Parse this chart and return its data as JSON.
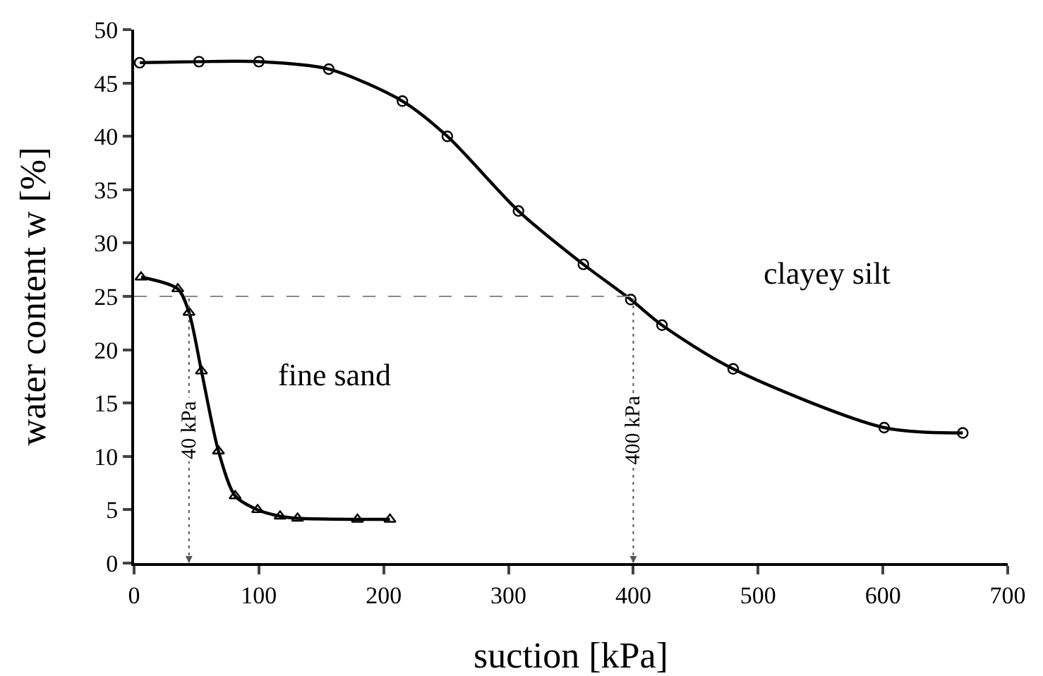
{
  "chart_data": {
    "type": "line",
    "xlabel": "suction [kPa]",
    "ylabel": "water content w [%]",
    "xlim": [
      0,
      700
    ],
    "xticks": [
      0,
      100,
      200,
      300,
      400,
      500,
      600,
      700
    ],
    "ylim": [
      0,
      50
    ],
    "yticks": [
      0,
      5,
      10,
      15,
      20,
      25,
      30,
      35,
      40,
      45,
      50
    ],
    "grid": false,
    "legend": false,
    "series": [
      {
        "name": "clayey silt",
        "color": "#000000",
        "marker": "circle",
        "x": [
          4.5,
          52,
          100,
          156,
          215,
          251,
          308,
          360,
          398,
          423,
          480,
          601,
          664
        ],
        "values": [
          46.9,
          47,
          47,
          46.3,
          43.3,
          40,
          33,
          28,
          24.7,
          22.3,
          18.2,
          12.7,
          12.2
        ]
      },
      {
        "name": "fine sand",
        "color": "#000000",
        "marker": "triangle",
        "x": [
          5.6,
          35,
          44,
          54,
          67.6,
          81,
          99,
          117,
          131,
          179,
          205
        ],
        "values": [
          26.8,
          25.7,
          23.5,
          18,
          10.5,
          6.3,
          5,
          4.4,
          4.2,
          4.1,
          4.1
        ]
      }
    ],
    "ref_lines": [
      {
        "axis": "y",
        "value": 25,
        "label": null,
        "line_style": "dashed",
        "color": "#888888"
      },
      {
        "axis": "x",
        "value": 44,
        "label": "40 kPa",
        "line_style": "dotted",
        "color": "#555555"
      },
      {
        "axis": "x",
        "value": 400,
        "label": "400 kPa",
        "line_style": "dotted",
        "color": "#555555"
      }
    ]
  }
}
